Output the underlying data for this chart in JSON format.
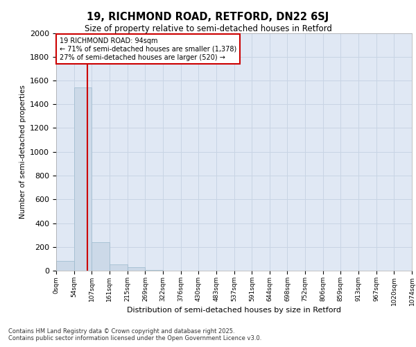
{
  "title1": "19, RICHMOND ROAD, RETFORD, DN22 6SJ",
  "title2": "Size of property relative to semi-detached houses in Retford",
  "xlabel": "Distribution of semi-detached houses by size in Retford",
  "ylabel": "Number of semi-detached properties",
  "bin_labels": [
    "0sqm",
    "54sqm",
    "107sqm",
    "161sqm",
    "215sqm",
    "269sqm",
    "322sqm",
    "376sqm",
    "430sqm",
    "483sqm",
    "537sqm",
    "591sqm",
    "644sqm",
    "698sqm",
    "752sqm",
    "806sqm",
    "859sqm",
    "913sqm",
    "967sqm",
    "1020sqm",
    "1074sqm"
  ],
  "bin_edges": [
    0,
    54,
    107,
    161,
    215,
    269,
    322,
    376,
    430,
    483,
    537,
    591,
    644,
    698,
    752,
    806,
    859,
    913,
    967,
    1020,
    1074
  ],
  "bar_heights": [
    80,
    1540,
    240,
    55,
    30,
    5,
    2,
    1,
    1,
    0,
    0,
    0,
    0,
    0,
    0,
    0,
    0,
    0,
    0,
    0
  ],
  "bar_color": "#ccd9e8",
  "bar_edge_color": "#9ab8cc",
  "property_size": 94,
  "property_line_color": "#cc0000",
  "annotation_box_color": "#cc0000",
  "annotation_text": "19 RICHMOND ROAD: 94sqm\n← 71% of semi-detached houses are smaller (1,378)\n27% of semi-detached houses are larger (520) →",
  "ylim": [
    0,
    2000
  ],
  "yticks": [
    0,
    200,
    400,
    600,
    800,
    1000,
    1200,
    1400,
    1600,
    1800,
    2000
  ],
  "grid_color": "#c8d4e4",
  "background_color": "#e0e8f4",
  "footer1": "Contains HM Land Registry data © Crown copyright and database right 2025.",
  "footer2": "Contains public sector information licensed under the Open Government Licence v3.0."
}
